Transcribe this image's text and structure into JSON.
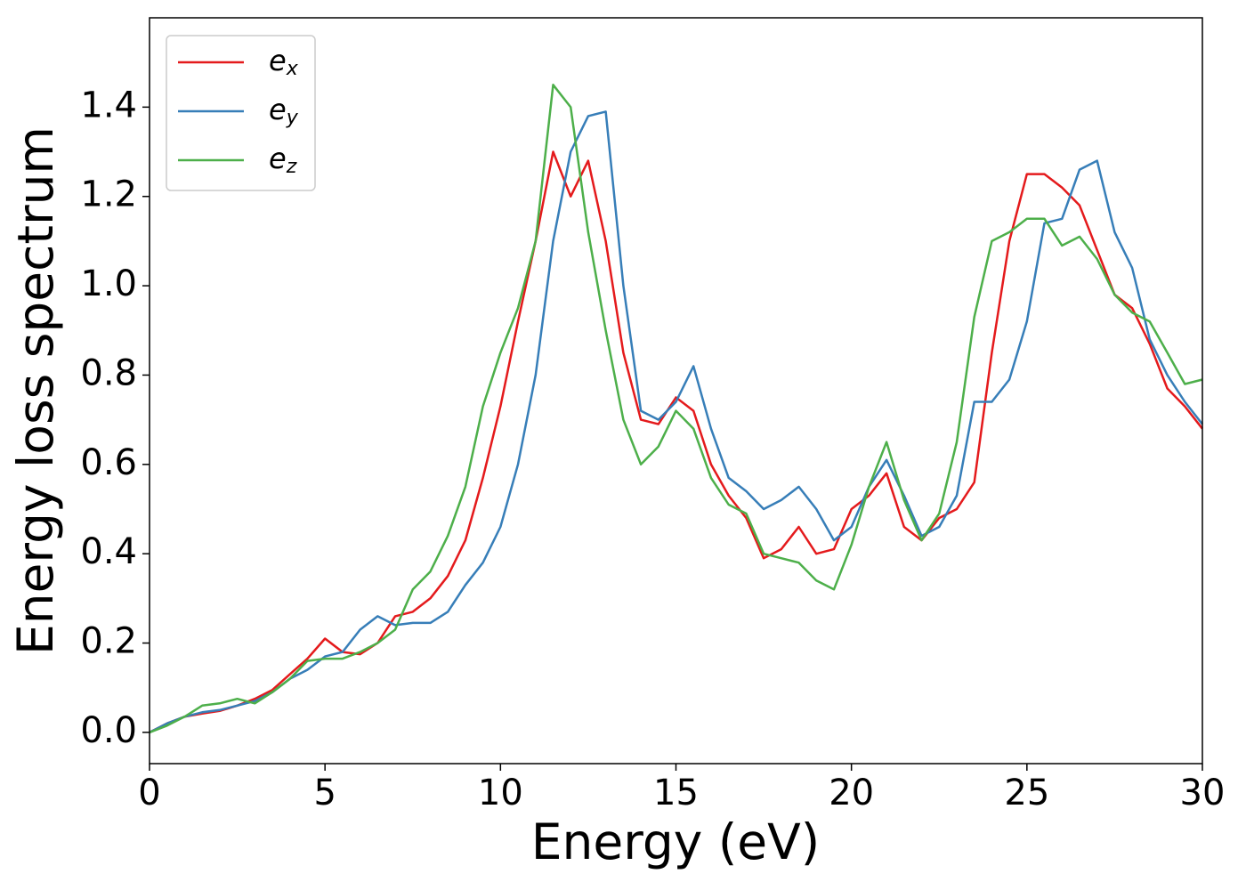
{
  "chart_data": {
    "type": "line",
    "x_label": "Energy (eV)",
    "y_label": "Energy loss spectrum",
    "x": [
      0,
      0.5,
      1,
      1.5,
      2,
      2.5,
      3,
      3.5,
      4,
      4.5,
      5,
      5.5,
      6,
      6.5,
      7,
      7.5,
      8,
      8.5,
      9,
      9.5,
      10,
      10.5,
      11,
      11.5,
      12,
      12.5,
      13,
      13.5,
      14,
      14.5,
      15,
      15.5,
      16,
      16.5,
      17,
      17.5,
      18,
      18.5,
      19,
      19.5,
      20,
      20.5,
      21,
      21.5,
      22,
      22.5,
      23,
      23.5,
      24,
      24.5,
      25,
      25.5,
      26,
      26.5,
      27,
      27.5,
      28,
      28.5,
      29,
      29.5,
      30
    ],
    "series": [
      {
        "name": "e_x",
        "color": "#e41a1c",
        "values": [
          0,
          0.02,
          0.035,
          0.042,
          0.048,
          0.06,
          0.075,
          0.095,
          0.13,
          0.165,
          0.21,
          0.18,
          0.175,
          0.2,
          0.26,
          0.27,
          0.3,
          0.35,
          0.43,
          0.57,
          0.73,
          0.92,
          1.1,
          1.3,
          1.2,
          1.28,
          1.1,
          0.85,
          0.7,
          0.69,
          0.75,
          0.72,
          0.6,
          0.53,
          0.48,
          0.39,
          0.41,
          0.46,
          0.4,
          0.41,
          0.5,
          0.53,
          0.58,
          0.46,
          0.43,
          0.48,
          0.5,
          0.56,
          0.85,
          1.1,
          1.25,
          1.25,
          1.22,
          1.18,
          1.08,
          0.98,
          0.95,
          0.87,
          0.77,
          0.73,
          0.68
        ]
      },
      {
        "name": "e_y",
        "color": "#377eb8",
        "values": [
          0,
          0.02,
          0.035,
          0.045,
          0.05,
          0.06,
          0.07,
          0.09,
          0.12,
          0.14,
          0.17,
          0.18,
          0.23,
          0.26,
          0.24,
          0.245,
          0.245,
          0.27,
          0.33,
          0.38,
          0.46,
          0.6,
          0.8,
          1.1,
          1.3,
          1.38,
          1.39,
          1.0,
          0.72,
          0.7,
          0.74,
          0.82,
          0.68,
          0.57,
          0.54,
          0.5,
          0.52,
          0.55,
          0.5,
          0.43,
          0.46,
          0.55,
          0.61,
          0.53,
          0.44,
          0.46,
          0.53,
          0.74,
          0.74,
          0.79,
          0.92,
          1.14,
          1.15,
          1.26,
          1.28,
          1.12,
          1.04,
          0.88,
          0.8,
          0.74,
          0.69
        ]
      },
      {
        "name": "e_z",
        "color": "#4daf4a",
        "values": [
          0,
          0.015,
          0.035,
          0.06,
          0.065,
          0.075,
          0.065,
          0.09,
          0.12,
          0.16,
          0.165,
          0.165,
          0.18,
          0.2,
          0.23,
          0.32,
          0.36,
          0.44,
          0.55,
          0.73,
          0.85,
          0.95,
          1.1,
          1.45,
          1.4,
          1.12,
          0.9,
          0.7,
          0.6,
          0.64,
          0.72,
          0.68,
          0.57,
          0.51,
          0.49,
          0.4,
          0.39,
          0.38,
          0.34,
          0.32,
          0.42,
          0.55,
          0.65,
          0.52,
          0.43,
          0.49,
          0.65,
          0.93,
          1.1,
          1.12,
          1.15,
          1.15,
          1.09,
          1.11,
          1.06,
          0.98,
          0.94,
          0.92,
          0.85,
          0.78,
          0.79
        ]
      }
    ],
    "xlim": [
      0,
      30
    ],
    "xticks": [
      0,
      5,
      10,
      15,
      20,
      25,
      30
    ],
    "ylim": [
      -0.07,
      1.6
    ],
    "yticks": [
      {
        "value": 0,
        "label": "0.0"
      },
      0.2,
      0.4,
      0.6,
      0.8,
      {
        "value": 1,
        "label": "1.0"
      },
      1.2,
      1.4
    ],
    "grid": false,
    "legend": "upper left"
  }
}
